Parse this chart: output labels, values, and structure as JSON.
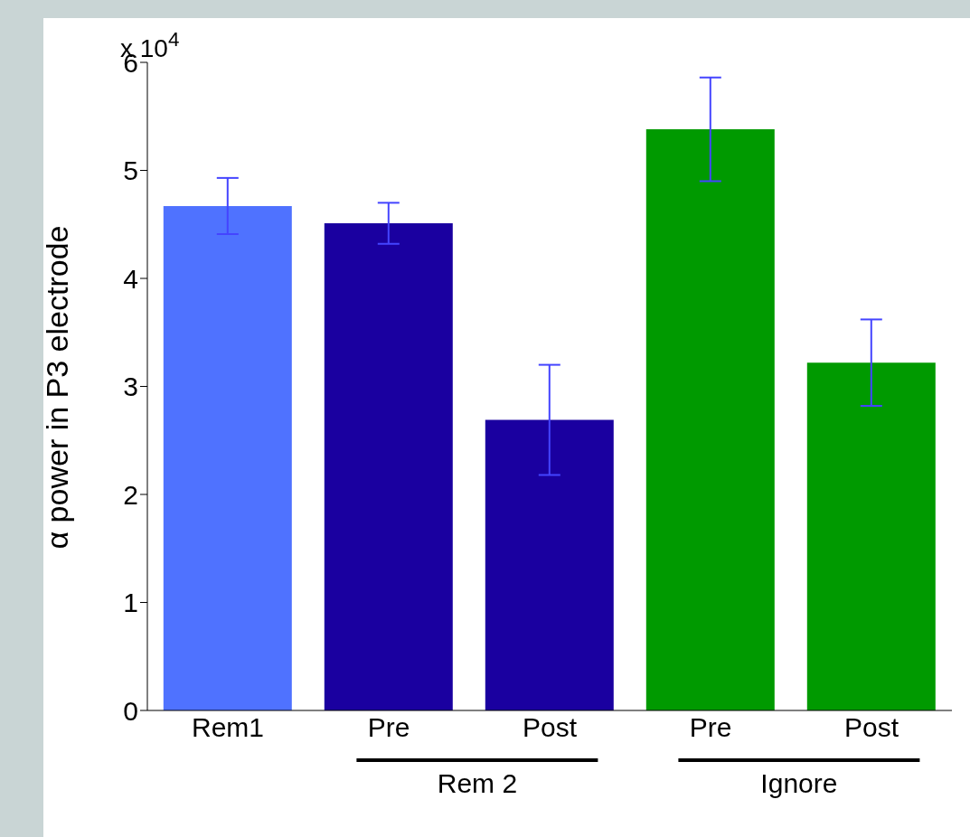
{
  "chart_data": {
    "type": "bar",
    "ylabel": "α power in P3 electrode",
    "categories": [
      "Rem1",
      "Pre",
      "Post",
      "Pre",
      "Post"
    ],
    "values": [
      4.67,
      4.51,
      2.69,
      5.38,
      3.22
    ],
    "errors": [
      0.26,
      0.19,
      0.51,
      0.48,
      0.4
    ],
    "colors": [
      "#4f72ff",
      "#1a00a0",
      "#1a00a0",
      "#009a00",
      "#009a00"
    ],
    "ylim": [
      0,
      6
    ],
    "yticks": [
      0,
      1,
      2,
      3,
      4,
      5,
      6
    ],
    "annotations": [
      "x 10$^{4}$",
      "Rem 2",
      "Ignore"
    ]
  }
}
